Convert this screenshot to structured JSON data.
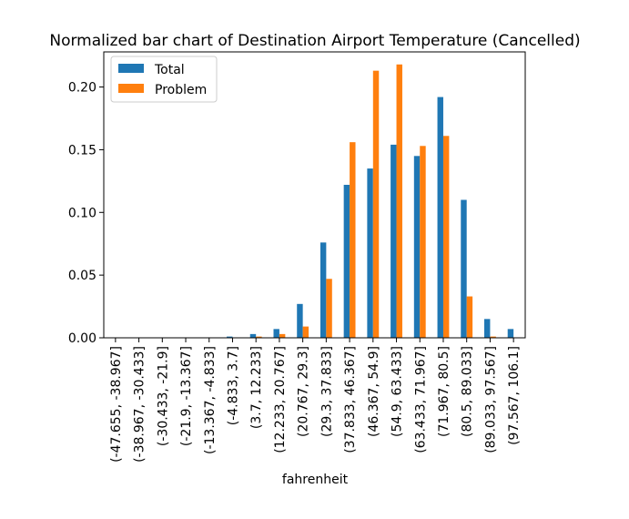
{
  "chart_data": {
    "type": "bar",
    "title": "Normalized bar chart of Destination Airport Temperature (Cancelled)",
    "xlabel": "fahrenheit",
    "ylabel": "",
    "ylim": [
      0,
      0.228
    ],
    "yticks": [
      "0.00",
      "0.05",
      "0.10",
      "0.15",
      "0.20"
    ],
    "ytick_values": [
      0,
      0.05,
      0.1,
      0.15,
      0.2
    ],
    "categories": [
      "(-47.655, -38.967]",
      "(-38.967, -30.433]",
      "(-30.433, -21.9]",
      "(-21.9, -13.367]",
      "(-13.367, -4.833]",
      "(-4.833, 3.7]",
      "(3.7, 12.233]",
      "(12.233, 20.767]",
      "(20.767, 29.3]",
      "(29.3, 37.833]",
      "(37.833, 46.367]",
      "(46.367, 54.9]",
      "(54.9, 63.433]",
      "(63.433, 71.967]",
      "(71.967, 80.5]",
      "(80.5, 89.033]",
      "(89.033, 97.567]",
      "(97.567, 106.1]"
    ],
    "series": [
      {
        "name": "Total",
        "color": "#1f77b4",
        "values": [
          0.0,
          0.0,
          0.0,
          0.0,
          0.0,
          0.001,
          0.003,
          0.007,
          0.027,
          0.076,
          0.122,
          0.135,
          0.154,
          0.145,
          0.192,
          0.11,
          0.015,
          0.007
        ]
      },
      {
        "name": "Problem",
        "color": "#ff7f0e",
        "values": [
          0.0,
          0.0,
          0.0,
          0.0,
          0.0,
          0.0,
          0.001,
          0.003,
          0.009,
          0.047,
          0.156,
          0.213,
          0.218,
          0.153,
          0.161,
          0.033,
          0.001,
          0.0
        ]
      }
    ],
    "legend": "top-left",
    "grid": false
  }
}
